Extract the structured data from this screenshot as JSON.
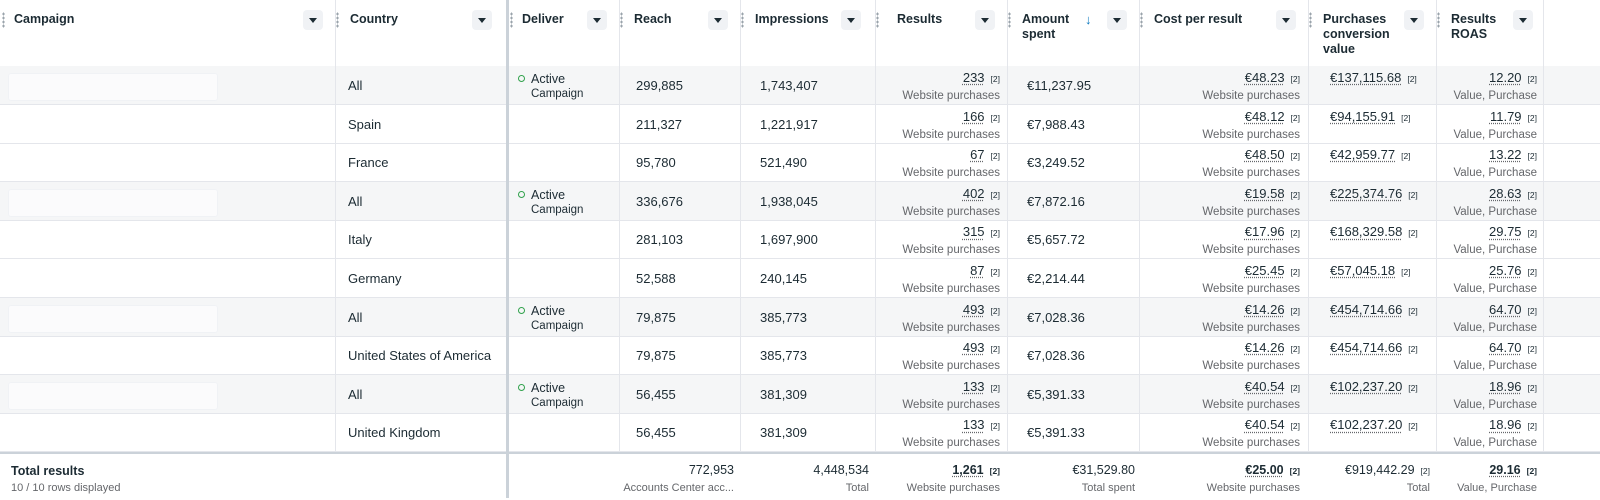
{
  "columns": {
    "campaign": "Campaign",
    "country": "Country",
    "delivery": "Deliver",
    "reach": "Reach",
    "impressions": "Impressions",
    "results": "Results",
    "amount_spent_1": "Amount",
    "amount_spent_2": "spent",
    "cost_per_result": "Cost per result",
    "pcv_1": "Purchases",
    "pcv_2": "conversion",
    "pcv_3": "value",
    "roas_1": "Results",
    "roas_2": "ROAS"
  },
  "colors": {
    "active_dot": "#31a24c",
    "sort_arrow": "#0a78be"
  },
  "rows": [
    {
      "shade": true,
      "campaign_placeholder": true,
      "country": "All",
      "status": "Active",
      "status_sub": "Campaign",
      "reach": "299,885",
      "impressions": "1,743,407",
      "results": "233",
      "results_sub": "Website purchases",
      "spent": "€11,237.95",
      "cpr": "€48.23",
      "cpr_sub": "Website purchases",
      "pcv": "€137,115.68",
      "roas": "12.20",
      "roas_sub": "Value, Purchase"
    },
    {
      "shade": false,
      "campaign_placeholder": false,
      "country": "Spain",
      "status": "",
      "status_sub": "",
      "reach": "211,327",
      "impressions": "1,221,917",
      "results": "166",
      "results_sub": "Website purchases",
      "spent": "€7,988.43",
      "cpr": "€48.12",
      "cpr_sub": "Website purchases",
      "pcv": "€94,155.91",
      "roas": "11.79",
      "roas_sub": "Value, Purchase"
    },
    {
      "shade": false,
      "campaign_placeholder": false,
      "country": "France",
      "status": "",
      "status_sub": "",
      "reach": "95,780",
      "impressions": "521,490",
      "results": "67",
      "results_sub": "Website purchases",
      "spent": "€3,249.52",
      "cpr": "€48.50",
      "cpr_sub": "Website purchases",
      "pcv": "€42,959.77",
      "roas": "13.22",
      "roas_sub": "Value, Purchase"
    },
    {
      "shade": true,
      "campaign_placeholder": true,
      "country": "All",
      "status": "Active",
      "status_sub": "Campaign",
      "reach": "336,676",
      "impressions": "1,938,045",
      "results": "402",
      "results_sub": "Website purchases",
      "spent": "€7,872.16",
      "cpr": "€19.58",
      "cpr_sub": "Website purchases",
      "pcv": "€225,374.76",
      "roas": "28.63",
      "roas_sub": "Value, Purchase"
    },
    {
      "shade": false,
      "campaign_placeholder": false,
      "country": "Italy",
      "status": "",
      "status_sub": "",
      "reach": "281,103",
      "impressions": "1,697,900",
      "results": "315",
      "results_sub": "Website purchases",
      "spent": "€5,657.72",
      "cpr": "€17.96",
      "cpr_sub": "Website purchases",
      "pcv": "€168,329.58",
      "roas": "29.75",
      "roas_sub": "Value, Purchase"
    },
    {
      "shade": false,
      "campaign_placeholder": false,
      "country": "Germany",
      "status": "",
      "status_sub": "",
      "reach": "52,588",
      "impressions": "240,145",
      "results": "87",
      "results_sub": "Website purchases",
      "spent": "€2,214.44",
      "cpr": "€25.45",
      "cpr_sub": "Website purchases",
      "pcv": "€57,045.18",
      "roas": "25.76",
      "roas_sub": "Value, Purchase"
    },
    {
      "shade": true,
      "campaign_placeholder": true,
      "country": "All",
      "status": "Active",
      "status_sub": "Campaign",
      "reach": "79,875",
      "impressions": "385,773",
      "results": "493",
      "results_sub": "Website purchases",
      "spent": "€7,028.36",
      "cpr": "€14.26",
      "cpr_sub": "Website purchases",
      "pcv": "€454,714.66",
      "roas": "64.70",
      "roas_sub": "Value, Purchase"
    },
    {
      "shade": false,
      "campaign_placeholder": false,
      "country": "United States of America",
      "status": "",
      "status_sub": "",
      "reach": "79,875",
      "impressions": "385,773",
      "results": "493",
      "results_sub": "Website purchases",
      "spent": "€7,028.36",
      "cpr": "€14.26",
      "cpr_sub": "Website purchases",
      "pcv": "€454,714.66",
      "roas": "64.70",
      "roas_sub": "Value, Purchase"
    },
    {
      "shade": true,
      "campaign_placeholder": true,
      "country": "All",
      "status": "Active",
      "status_sub": "Campaign",
      "reach": "56,455",
      "impressions": "381,309",
      "results": "133",
      "results_sub": "Website purchases",
      "spent": "€5,391.33",
      "cpr": "€40.54",
      "cpr_sub": "Website purchases",
      "pcv": "€102,237.20",
      "roas": "18.96",
      "roas_sub": "Value, Purchase"
    },
    {
      "shade": false,
      "campaign_placeholder": false,
      "country": "United Kingdom",
      "status": "",
      "status_sub": "",
      "reach": "56,455",
      "impressions": "381,309",
      "results": "133",
      "results_sub": "Website purchases",
      "spent": "€5,391.33",
      "cpr": "€40.54",
      "cpr_sub": "Website purchases",
      "pcv": "€102,237.20",
      "roas": "18.96",
      "roas_sub": "Value, Purchase"
    }
  ],
  "footnote_marker": "[2]",
  "totals": {
    "title": "Total results",
    "subtitle": "10 / 10 rows displayed",
    "reach": "772,953",
    "reach_sub": "Accounts Center acc...",
    "impressions": "4,448,534",
    "impressions_sub": "Total",
    "results": "1,261",
    "results_sub": "Website purchases",
    "spent": "€31,529.80",
    "spent_sub": "Total spent",
    "cpr": "€25.00",
    "cpr_sub": "Website purchases",
    "pcv": "€919,442.29",
    "pcv_sub": "Total",
    "roas": "29.16",
    "roas_sub": "Value, Purchase"
  }
}
